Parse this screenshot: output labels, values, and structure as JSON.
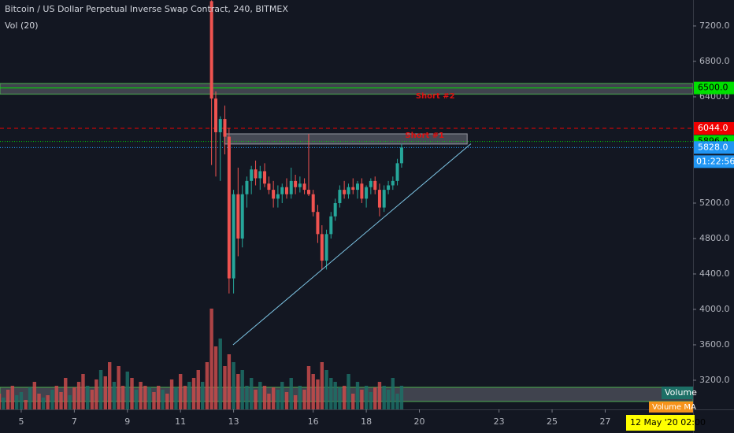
{
  "chart_data": {
    "type": "candlestick",
    "title": "Bitcoin / US Dollar Perpetual Inverse Swap Contract, 240, BITMEX",
    "subtitle": "Vol (20)",
    "xlim": [
      4.2,
      30.31
    ],
    "xticks": [
      5,
      7,
      9,
      11,
      13,
      16,
      18,
      20,
      23,
      25,
      27
    ],
    "ylim": [
      2871,
      7493
    ],
    "yticks": [
      {
        "value": 7200,
        "label": "7200.0"
      },
      {
        "value": 6800,
        "label": "6800.0"
      },
      {
        "value": 6400,
        "label": "6400.0"
      },
      {
        "value": 5200,
        "label": "5200.0"
      },
      {
        "value": 4800,
        "label": "4800.0"
      },
      {
        "value": 4400,
        "label": "4400.0"
      },
      {
        "value": 4000,
        "label": "4000.0"
      },
      {
        "value": 3600,
        "label": "3600.0"
      },
      {
        "value": 3200,
        "label": "3200.0"
      }
    ],
    "up_color": "#26a69a",
    "down_color": "#ef5350",
    "x": [
      12.17,
      12.33,
      12.5,
      12.67,
      12.83,
      13,
      13.17,
      13.33,
      13.5,
      13.67,
      13.83,
      14,
      14.17,
      14.33,
      14.5,
      14.67,
      14.83,
      15,
      15.17,
      15.33,
      15.5,
      15.67,
      15.83,
      16,
      16.17,
      16.33,
      16.5,
      16.67,
      16.83,
      17,
      17.17,
      17.33,
      17.5,
      17.67,
      17.83,
      18,
      18.17,
      18.33,
      18.5,
      18.67,
      18.83,
      19,
      19.17,
      19.33
    ],
    "open": [
      7480,
      6380,
      6000,
      6150,
      5950,
      4350,
      5300,
      4800,
      5300,
      5450,
      5580,
      5480,
      5560,
      5420,
      5350,
      5250,
      5300,
      5380,
      5300,
      5450,
      5380,
      5420,
      5350,
      5300,
      5100,
      4850,
      4550,
      4850,
      5050,
      5200,
      5350,
      5300,
      5380,
      5350,
      5420,
      5250,
      5380,
      5450,
      5350,
      5150,
      5350,
      5400,
      5450,
      5650
    ],
    "high": [
      7490,
      6460,
      6180,
      6300,
      6050,
      5350,
      5600,
      5400,
      5500,
      5620,
      5680,
      5620,
      5650,
      5500,
      5450,
      5400,
      5420,
      5480,
      5600,
      5520,
      5500,
      5480,
      5980,
      5350,
      5180,
      4950,
      4900,
      5100,
      5250,
      5400,
      5450,
      5420,
      5480,
      5450,
      5480,
      5400,
      5480,
      5500,
      5420,
      5400,
      5450,
      5500,
      5700,
      5870
    ],
    "low": [
      5630,
      5500,
      5450,
      5750,
      4180,
      4180,
      4600,
      4700,
      5150,
      5300,
      5400,
      5350,
      5380,
      5300,
      5150,
      5150,
      5200,
      5250,
      5250,
      5300,
      5320,
      5300,
      5280,
      5050,
      4750,
      4450,
      4450,
      4800,
      5000,
      5150,
      5250,
      5250,
      5300,
      5250,
      5200,
      5150,
      5300,
      5300,
      5050,
      5100,
      5300,
      5350,
      5400,
      5600
    ],
    "close": [
      6380,
      6000,
      6150,
      5950,
      4350,
      5300,
      4800,
      5300,
      5450,
      5580,
      5480,
      5560,
      5420,
      5350,
      5250,
      5300,
      5380,
      5300,
      5450,
      5380,
      5420,
      5350,
      5300,
      5100,
      4850,
      4550,
      4850,
      5050,
      5200,
      5350,
      5300,
      5380,
      5350,
      5420,
      5250,
      5380,
      5450,
      5350,
      5150,
      5350,
      5400,
      5450,
      5650,
      5828
    ],
    "volume": {
      "name": "Volume",
      "ma_name": "Volume MA",
      "vlim": [
        0,
        150
      ],
      "x": [
        4.17,
        4.33,
        4.5,
        4.67,
        4.83,
        5,
        5.17,
        5.33,
        5.5,
        5.67,
        5.83,
        6,
        6.17,
        6.33,
        6.5,
        6.67,
        6.83,
        7,
        7.17,
        7.33,
        7.5,
        7.67,
        7.83,
        8,
        8.17,
        8.33,
        8.5,
        8.67,
        8.83,
        9,
        9.17,
        9.33,
        9.5,
        9.67,
        9.83,
        10,
        10.17,
        10.33,
        10.5,
        10.67,
        10.83,
        11,
        11.17,
        11.33,
        11.5,
        11.67,
        11.83,
        12,
        12.17,
        12.33,
        12.5,
        12.67,
        12.83,
        13,
        13.17,
        13.33,
        13.5,
        13.67,
        13.83,
        14,
        14.17,
        14.33,
        14.5,
        14.67,
        14.83,
        15,
        15.17,
        15.33,
        15.5,
        15.67,
        15.83,
        16,
        16.17,
        16.33,
        16.5,
        16.67,
        16.83,
        17,
        17.17,
        17.33,
        17.5,
        17.67,
        17.83,
        18,
        18.17,
        18.33,
        18.5,
        18.67,
        18.83,
        19,
        19.17,
        19.33
      ],
      "values": [
        20,
        15,
        25,
        30,
        18,
        22,
        12,
        28,
        35,
        20,
        15,
        18,
        25,
        30,
        22,
        40,
        18,
        28,
        35,
        45,
        30,
        25,
        38,
        50,
        42,
        60,
        35,
        55,
        30,
        48,
        40,
        25,
        35,
        30,
        28,
        22,
        30,
        25,
        20,
        38,
        28,
        45,
        30,
        35,
        40,
        50,
        35,
        60,
        128,
        80,
        90,
        55,
        70,
        60,
        45,
        50,
        30,
        40,
        25,
        35,
        30,
        20,
        28,
        25,
        35,
        22,
        40,
        18,
        30,
        25,
        55,
        45,
        38,
        60,
        50,
        40,
        35,
        28,
        30,
        45,
        20,
        35,
        25,
        30,
        22,
        28,
        35,
        30,
        25,
        40,
        20,
        30
      ],
      "colors": [
        "#c94b4b",
        "#1d6f66",
        "#c94b4b",
        "#c94b4b",
        "#1d6f66",
        "#1d6f66",
        "#c94b4b",
        "#1d6f66",
        "#c94b4b",
        "#c94b4b",
        "#1d6f66",
        "#c94b4b",
        "#1d6f66",
        "#c94b4b",
        "#c94b4b",
        "#c94b4b",
        "#1d6f66",
        "#c94b4b",
        "#c94b4b",
        "#c94b4b",
        "#1d6f66",
        "#c94b4b",
        "#c94b4b",
        "#1d6f66",
        "#c94b4b",
        "#c94b4b",
        "#1d6f66",
        "#c94b4b",
        "#c94b4b",
        "#1d6f66",
        "#c94b4b",
        "#1d6f66",
        "#c94b4b",
        "#c94b4b",
        "#1d6f66",
        "#c94b4b",
        "#c94b4b",
        "#1d6f66",
        "#c94b4b",
        "#c94b4b",
        "#1d6f66",
        "#c94b4b",
        "#c94b4b",
        "#1d6f66",
        "#c94b4b",
        "#c94b4b",
        "#1d6f66",
        "#c94b4b",
        "#c94b4b",
        "#c94b4b",
        "#1d6f66",
        "#c94b4b",
        "#c94b4b",
        "#1d6f66",
        "#c94b4b",
        "#1d6f66",
        "#1d6f66",
        "#1d6f66",
        "#c94b4b",
        "#1d6f66",
        "#c94b4b",
        "#c94b4b",
        "#c94b4b",
        "#1d6f66",
        "#1d6f66",
        "#c94b4b",
        "#1d6f66",
        "#c94b4b",
        "#1d6f66",
        "#c94b4b",
        "#c94b4b",
        "#c94b4b",
        "#c94b4b",
        "#c94b4b",
        "#1d6f66",
        "#1d6f66",
        "#1d6f66",
        "#1d6f66",
        "#c94b4b",
        "#1d6f66",
        "#c94b4b",
        "#1d6f66",
        "#c94b4b",
        "#1d6f66",
        "#1d6f66",
        "#c94b4b",
        "#c94b4b",
        "#1d6f66",
        "#1d6f66",
        "#1d6f66",
        "#1d6f66",
        "#1d6f66"
      ]
    },
    "levels": [
      {
        "value": 6500,
        "label": "6500.0",
        "color": "#00e000",
        "text_color": "#000000",
        "style": "solid"
      },
      {
        "value": 6044,
        "label": "6044.0",
        "color": "#f00000",
        "text_color": "#ffffff",
        "style": "dashed"
      },
      {
        "value": 5896,
        "label": "5896.0",
        "color": "#00e000",
        "text_color": "#000000",
        "style": "dotted"
      },
      {
        "value": 5828,
        "label": "5828.0",
        "color": "#2196f3",
        "text_color": "#ffffff",
        "style": "dotted"
      }
    ],
    "countdown": "01:22:56",
    "crosshair_time": "12 May '20   02:00",
    "zones": [
      {
        "low": 6430,
        "high": 6550
      },
      {
        "low": 2960,
        "high": 3120
      }
    ],
    "box": {
      "x": [
        12.66,
        21.8
      ],
      "low": 5867,
      "high": 5982
    },
    "trend_line": {
      "x": [
        12.98,
        21.94
      ],
      "y": [
        3600,
        5870
      ]
    },
    "annotations": [
      {
        "text": "Short #2",
        "x": 20.6,
        "y": 6409
      },
      {
        "text": "Short #1",
        "x": 20.2,
        "y": 5964
      }
    ]
  }
}
